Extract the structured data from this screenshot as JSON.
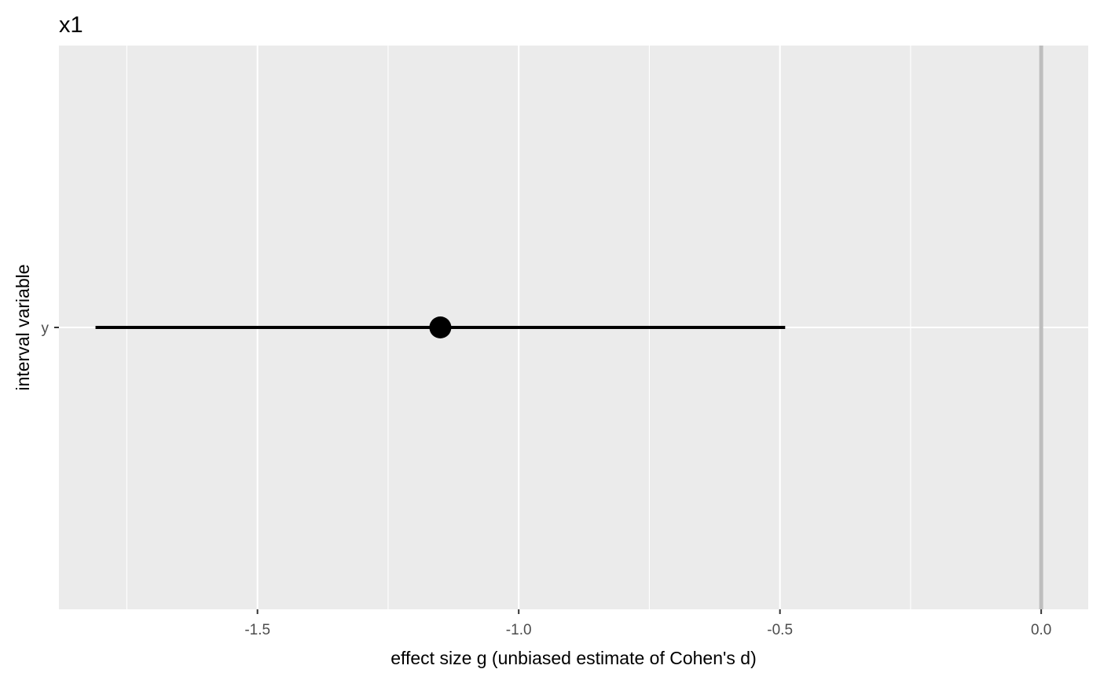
{
  "chart_data": {
    "type": "interval",
    "title": "x1",
    "xlabel": "effect size g (unbiased estimate of Cohen's d)",
    "ylabel": "interval variable",
    "xlim": [
      -1.88,
      0.09
    ],
    "x_ticks": [
      -1.5,
      -1.0,
      -0.5,
      0.0
    ],
    "x_tick_labels": [
      "-1.5",
      "-1.0",
      "-0.5",
      "0.0"
    ],
    "x_minor_ticks": [
      -1.75,
      -1.25,
      -0.75,
      -0.25
    ],
    "categories": [
      "y"
    ],
    "reference_line": 0.0,
    "grid": true,
    "points": [
      {
        "category": "y",
        "estimate": -1.15,
        "lower": -1.81,
        "upper": -0.49
      }
    ]
  },
  "colors": {
    "panel_background": "#ebebeb",
    "gridline": "#ffffff",
    "reference_line": "#bebebe",
    "estimate": "#000000",
    "tick_text": "#4d4d4d"
  }
}
